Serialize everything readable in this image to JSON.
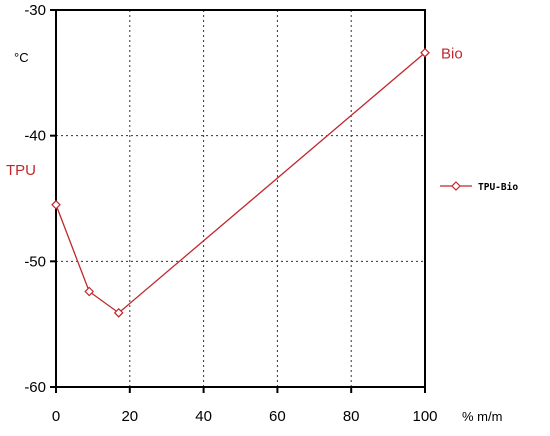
{
  "chart_data": {
    "type": "line",
    "x_unit": "% m/m",
    "y_unit": "°C",
    "xlim": [
      0,
      100
    ],
    "ylim": [
      -60,
      -30
    ],
    "x_ticks": [
      "0",
      "20",
      "40",
      "60",
      "80",
      "100"
    ],
    "y_ticks": [
      "-30",
      "-40",
      "-50",
      "-60"
    ],
    "x_tick_values": [
      0,
      20,
      40,
      60,
      80,
      100
    ],
    "y_tick_values": [
      -30,
      -40,
      -50,
      -60
    ],
    "grid": true,
    "series": [
      {
        "name": "TPU-Bio",
        "color": "#c0282d",
        "marker": "diamond",
        "points": [
          {
            "x": 0,
            "y": -45.5
          },
          {
            "x": 9,
            "y": -52.4
          },
          {
            "x": 17,
            "y": -54.1
          },
          {
            "x": 100,
            "y": -33.4
          }
        ]
      }
    ],
    "annotations": [
      {
        "text": "TPU",
        "x": 0,
        "y": -45.5,
        "color": "#c0282d"
      },
      {
        "text": "Bio",
        "x": 100,
        "y": -33.4,
        "color": "#c0282d"
      }
    ],
    "legend_position": "right"
  }
}
